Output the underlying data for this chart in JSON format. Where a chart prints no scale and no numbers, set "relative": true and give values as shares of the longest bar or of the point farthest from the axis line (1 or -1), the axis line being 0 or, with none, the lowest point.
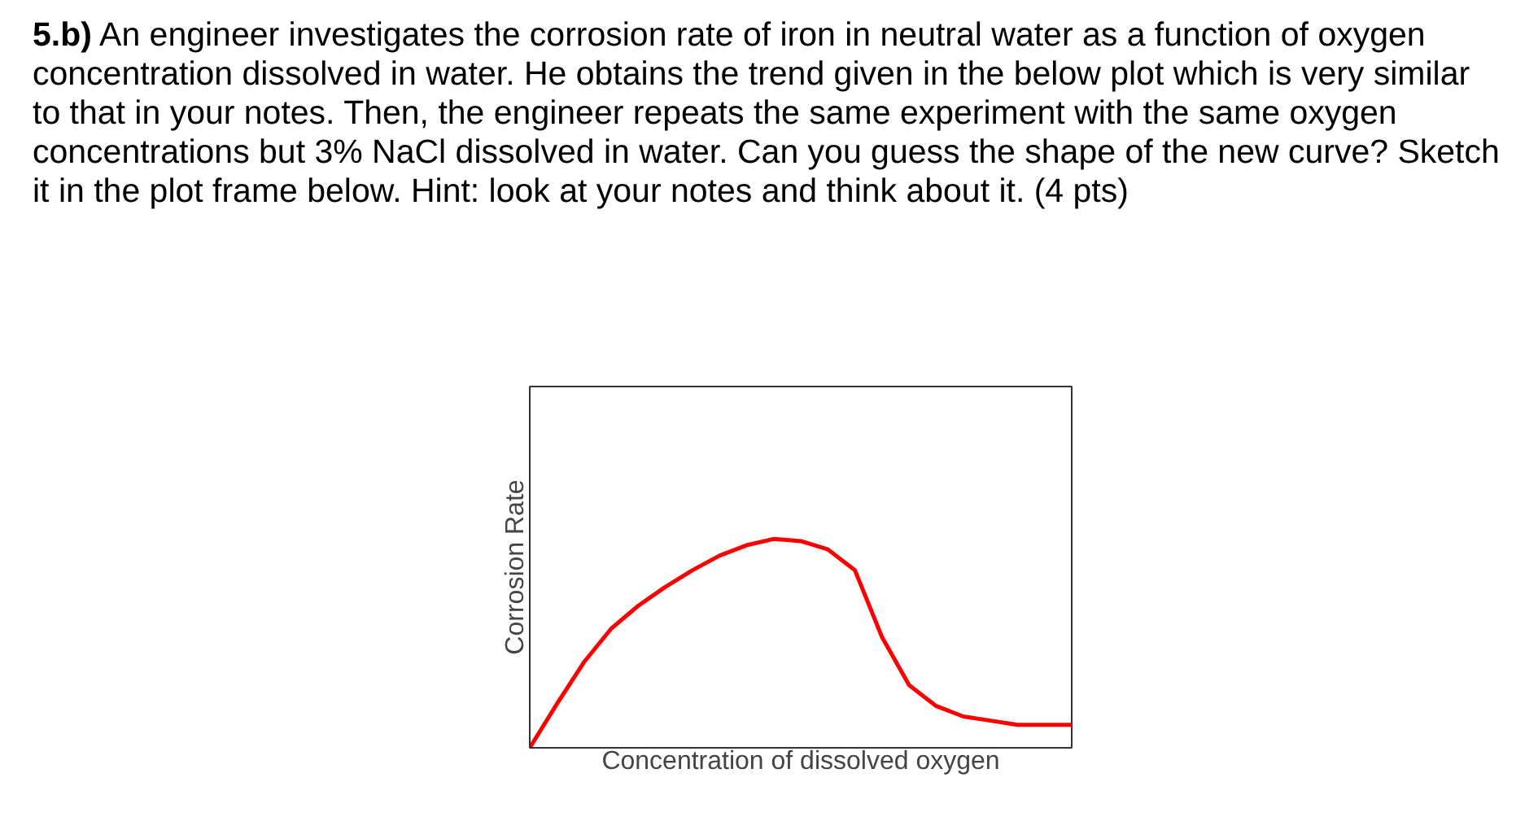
{
  "chart_data": {
    "type": "line",
    "title": "5.b) An engineer investigates the corrosion rate of iron in neutral water as a function of oxygen concentration dissolved in water.  He obtains the trend given in the below plot which is very similar to that in your notes.  Then, the engineer repeats the same experiment with the same oxygen concentrations but 3% NaCl dissolved in water.  Can you guess the shape of the new curve?  Sketch it in the plot frame below.  Hint: look at your notes and think about it.  (4 pts)",
    "xlabel": "Concentration of dissolved oxygen",
    "ylabel": "Corrosion Rate",
    "relative": true,
    "categories": [
      null,
      null,
      null,
      null,
      null,
      null,
      null,
      null,
      null,
      null,
      null,
      null,
      null,
      null,
      null,
      null,
      null,
      null,
      null,
      null,
      null
    ],
    "series": [
      {
        "color": "#ff0000",
        "values": [
          0,
          0.21,
          0.41,
          0.57,
          0.68,
          0.77,
          0.85,
          0.92,
          0.97,
          1,
          0.99,
          0.95,
          0.85,
          0.53,
          0.3,
          0.2,
          0.15,
          0.13,
          0.11,
          0.11,
          0.11
        ]
      }
    ]
  }
}
